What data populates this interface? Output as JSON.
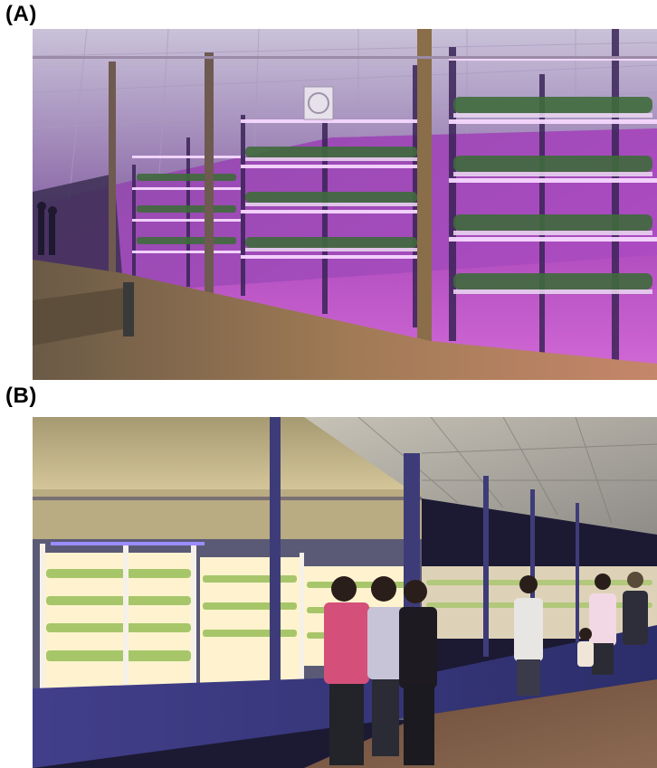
{
  "figure": {
    "panel_a_label": "(A)",
    "panel_b_label": "(B)"
  },
  "colors": {
    "panel_a_glow": "#e15bd6",
    "panel_a_led": "#f7d6ff",
    "panel_b_ceiling": "#d7c9a0",
    "panel_b_rack_light": "#fff3cf",
    "panel_b_wall": "#3b3a8a"
  }
}
